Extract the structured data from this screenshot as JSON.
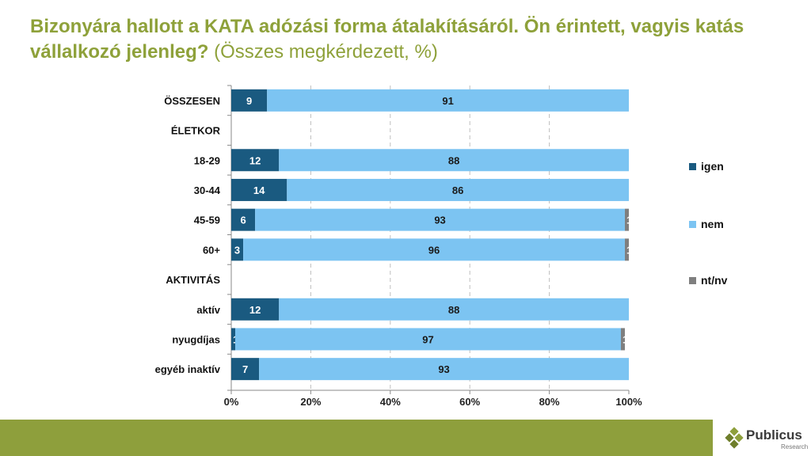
{
  "header": {
    "title": "Bizonyára hallott a KATA adózási forma átalakításáról. Ön érintett, vagyis katás vállalkozó jelenleg?",
    "subtitle": "(Összes megkérdezett, %)"
  },
  "brand": {
    "name": "Publicus",
    "sub": "Research"
  },
  "colors": {
    "igen": "#1a5a80",
    "nem": "#7cc4f2",
    "ntnv": "#7f7f7f",
    "green": "#8e9f3c"
  },
  "chart_data": {
    "type": "bar",
    "orientation": "horizontal",
    "stacked": true,
    "title": "Bizonyára hallott a KATA adózási forma átalakításáról. Ön érintett, vagyis katás vállalkozó jelenleg?",
    "categories": [
      "ÖSSZESEN",
      "ÉLETKOR",
      "18-29",
      "30-44",
      "45-59",
      "60+",
      "AKTIVITÁS",
      "aktív",
      "nyugdíjas",
      "egyéb inaktív"
    ],
    "series": [
      {
        "name": "igen",
        "values": [
          9,
          null,
          12,
          14,
          6,
          3,
          null,
          12,
          1,
          7
        ]
      },
      {
        "name": "nem",
        "values": [
          91,
          null,
          88,
          86,
          93,
          96,
          null,
          88,
          97,
          93
        ]
      },
      {
        "name": "nt/nv",
        "values": [
          0,
          null,
          0,
          0,
          1,
          1,
          null,
          0,
          1,
          0
        ]
      }
    ],
    "xlim": [
      0,
      100
    ],
    "xticks": [
      "0%",
      "20%",
      "40%",
      "60%",
      "80%",
      "100%"
    ],
    "legend": "right",
    "grid": "vertical dashed"
  }
}
